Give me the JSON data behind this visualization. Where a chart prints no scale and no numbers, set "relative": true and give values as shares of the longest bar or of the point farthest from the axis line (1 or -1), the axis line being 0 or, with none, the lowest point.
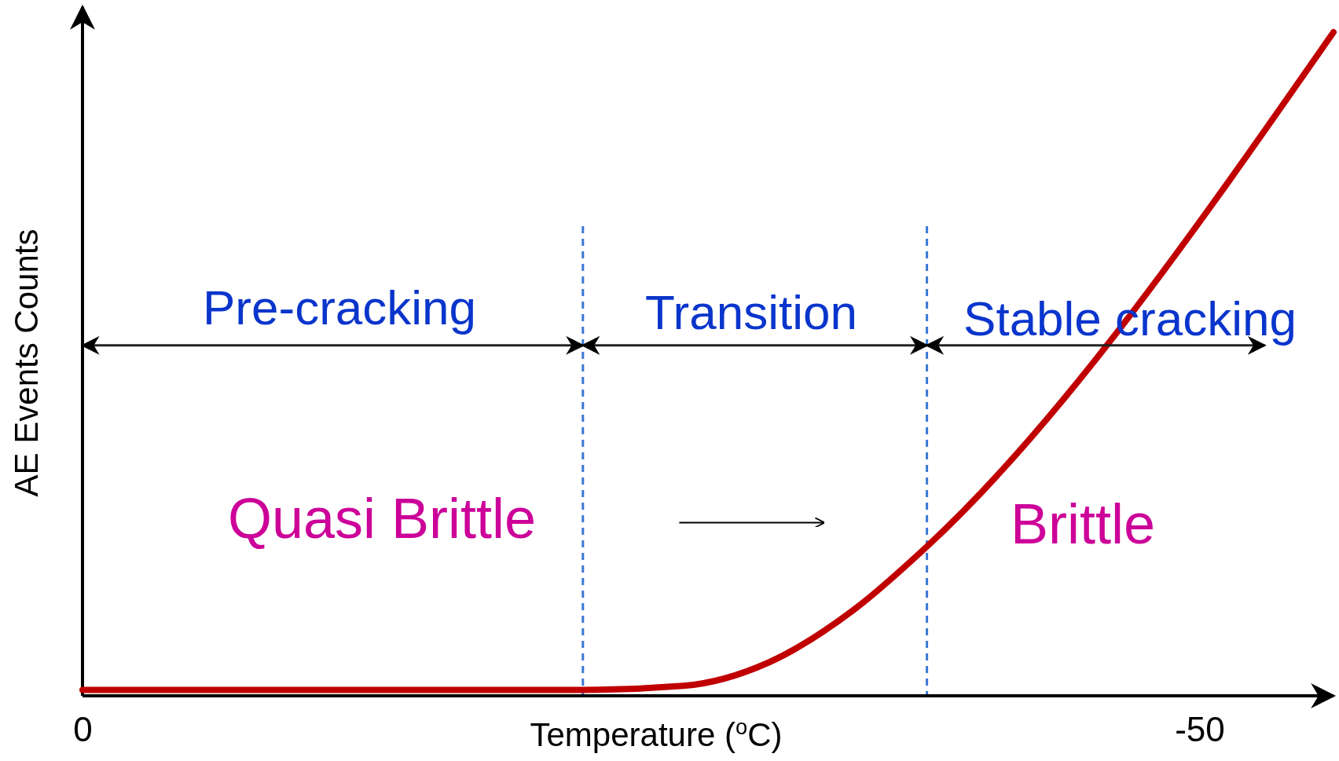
{
  "chart_data": {
    "type": "line",
    "relative": true,
    "xlabel": "Temperature ($^{o}$C)",
    "ylabel": "AE Events Counts",
    "xlim": [
      0,
      -56
    ],
    "xticks": [
      0,
      -50
    ],
    "marker": "none",
    "line_style": "solid",
    "series": [
      {
        "color": "#c00000",
        "x": [
          0,
          -22.4,
          -26.9,
          -30.7,
          -34.5,
          -37.8,
          -56
        ],
        "values": [
          0.009,
          0.009,
          0.015,
          0.05,
          0.129,
          0.225,
          1
        ]
      }
    ],
    "ref_lines": [
      {
        "axis": "x",
        "value": -22.4,
        "color": "#3a78d4",
        "line_style": "dashed"
      },
      {
        "axis": "x",
        "value": -37.8,
        "color": "#3a78d4",
        "line_style": "dashed"
      }
    ],
    "annotations": [
      "Pre-cracking",
      "Transition",
      "Stable cracking",
      "Quasi Brittle",
      "Brittle"
    ]
  }
}
